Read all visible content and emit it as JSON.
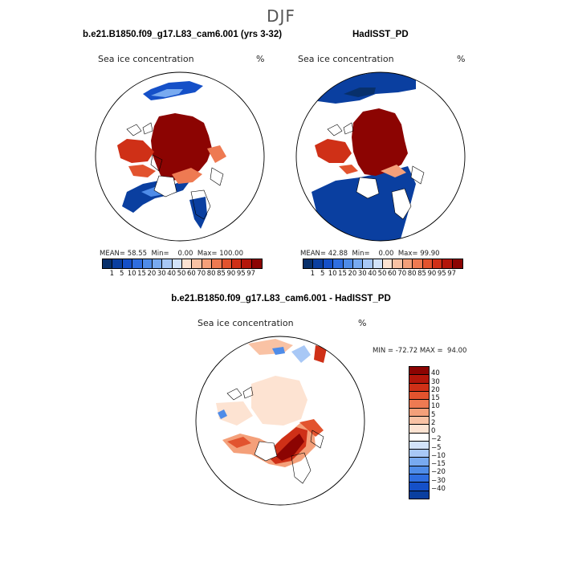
{
  "season": "DJF",
  "panels": [
    {
      "title": "b.e21.B1850.f09_g17.L83_cam6.001 (yrs 3-32)",
      "variable": "Sea ice concentration",
      "units": "%",
      "mean_label": "MEAN=",
      "mean": "58.55",
      "min_label": "Min=",
      "min": "0.00",
      "max_label": "Max=",
      "max": "100.00"
    },
    {
      "title": "HadISST_PD",
      "variable": "Sea ice concentration",
      "units": "%",
      "mean_label": "MEAN=",
      "mean": "42.88",
      "min_label": "Min=",
      "min": "0.00",
      "max_label": "Max=",
      "max": "99.90"
    }
  ],
  "diff_panel": {
    "title": "b.e21.B1850.f09_g17.L83_cam6.001 - HadISST_PD",
    "variable": "Sea ice concentration",
    "units": "%",
    "min_label": "MIN =",
    "min": "-72.72",
    "max_label": "MAX =",
    "max": "94.00"
  },
  "colorbar_abs": {
    "labels": [
      "1",
      "5",
      "10",
      "15",
      "20",
      "30",
      "40",
      "50",
      "60",
      "70",
      "80",
      "85",
      "90",
      "95",
      "97"
    ],
    "colors": [
      "#08306b",
      "#0a3fa0",
      "#1550c8",
      "#2f6ee0",
      "#4f8ce8",
      "#78aaf0",
      "#a8c8f6",
      "#d2e3fa",
      "#fde3d2",
      "#f9c2a4",
      "#f4a07a",
      "#ee7a52",
      "#e2532e",
      "#cf3017",
      "#b3160a",
      "#8c0402"
    ]
  },
  "colorbar_diff": {
    "labels": [
      "40",
      "30",
      "20",
      "15",
      "10",
      "5",
      "2",
      "0",
      "−2",
      "−5",
      "−10",
      "−15",
      "−20",
      "−30",
      "−40"
    ],
    "colors": [
      "#8c0402",
      "#b3160a",
      "#cf3017",
      "#e2532e",
      "#ee7a52",
      "#f4a07a",
      "#f9c2a4",
      "#fde3d2",
      "#ffffff",
      "#d2e3fa",
      "#a8c8f6",
      "#78aaf0",
      "#4f8ce8",
      "#2f6ee0",
      "#1550c8",
      "#0a3fa0"
    ]
  }
}
